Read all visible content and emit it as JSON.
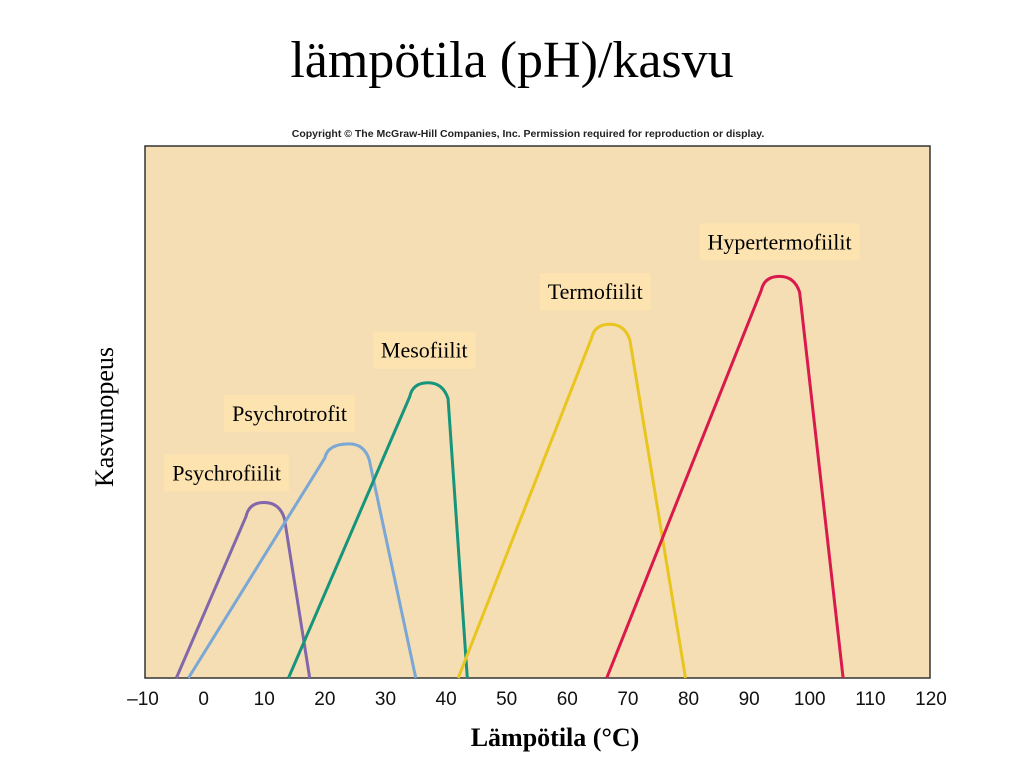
{
  "slide": {
    "title": "lämpötila (pH)/kasvu"
  },
  "chart_data": {
    "type": "line",
    "copyright": "Copyright © The McGraw-Hill Companies, Inc. Permission required for reproduction or display.",
    "title": "",
    "xlabel": "Lämpötila (°C)",
    "ylabel": "Kasvunopeus",
    "xlim": [
      -10,
      120
    ],
    "ylim": [
      0,
      100
    ],
    "xticks": [
      -10,
      0,
      10,
      20,
      30,
      40,
      50,
      60,
      70,
      80,
      90,
      100,
      110,
      120
    ],
    "xtick_labels": [
      "–10",
      "0",
      "10",
      "20",
      "30",
      "40",
      "50",
      "60",
      "70",
      "80",
      "90",
      "100",
      "110",
      "120"
    ],
    "background_color": "#f5deb3",
    "grid": false,
    "series": [
      {
        "name": "Psychrofiilit",
        "color": "#8268ab",
        "x": [
          -4.5,
          7,
          10,
          13,
          17.5
        ],
        "y": [
          0,
          33,
          33,
          33,
          0
        ]
      },
      {
        "name": "Psychrotrofit",
        "color": "#7ba7d5",
        "x": [
          -2.5,
          20,
          24,
          27,
          35
        ],
        "y": [
          0,
          44,
          44,
          44,
          0
        ]
      },
      {
        "name": "Mesofiilit",
        "color": "#16957c",
        "x": [
          14,
          34,
          37,
          40,
          43.5
        ],
        "y": [
          0,
          55.5,
          55.5,
          55.5,
          0
        ]
      },
      {
        "name": "Termofiilit",
        "color": "#e8c51f",
        "x": [
          42,
          64,
          67,
          70,
          79.5
        ],
        "y": [
          0,
          66.5,
          66.5,
          66.5,
          0
        ]
      },
      {
        "name": "Hypertermofiilit",
        "color": "#d91a4d",
        "x": [
          66.5,
          92,
          95,
          98,
          105.5
        ],
        "y": [
          0,
          75.5,
          75.5,
          75.5,
          0
        ]
      }
    ]
  }
}
